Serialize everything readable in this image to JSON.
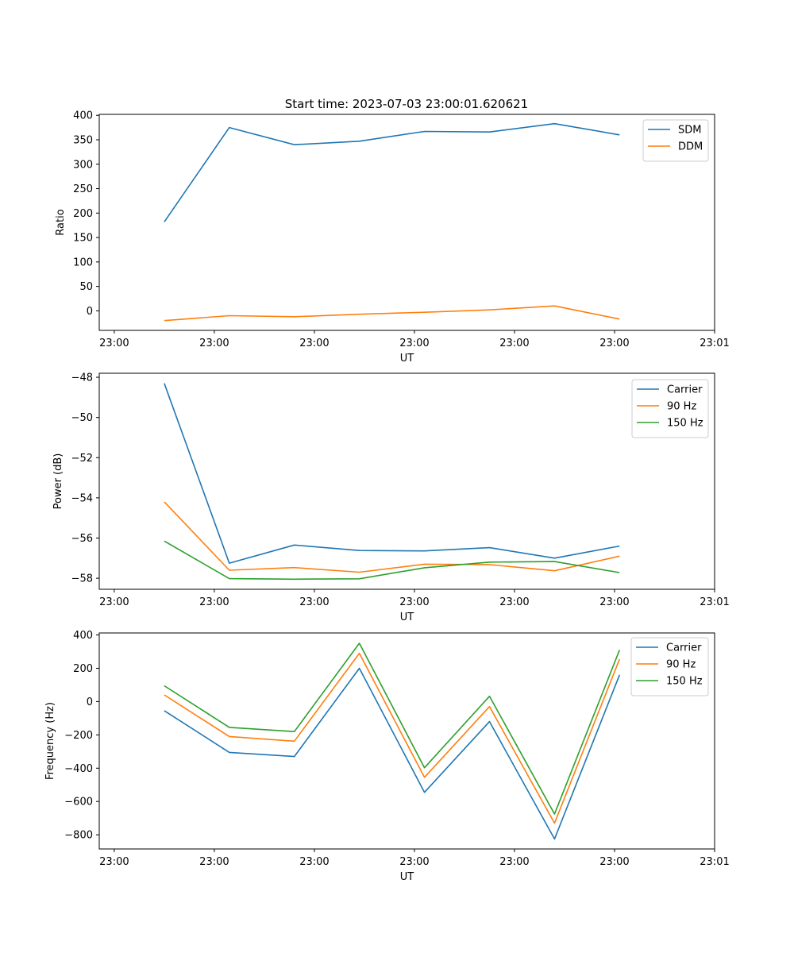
{
  "title": "Start time: 2023-07-03 23:00:01.620621",
  "colors": {
    "c1": "#1f77b4",
    "c2": "#ff7f0e",
    "c3": "#2ca02c"
  },
  "chart_data": [
    {
      "type": "line",
      "x": [
        0.5,
        1.15,
        1.8,
        2.45,
        3.1,
        3.75,
        4.4,
        5.05
      ],
      "xlim": [
        -0.15,
        6.0
      ],
      "xticks": [
        0,
        1,
        2,
        3,
        4,
        5,
        6
      ],
      "xtick_labels": [
        "23:00",
        "23:00",
        "23:00",
        "23:00",
        "23:00",
        "23:00",
        "23:01"
      ],
      "xlabel": "UT",
      "ylabel": "Ratio",
      "ylim": [
        -40,
        402
      ],
      "yticks": [
        400,
        350,
        300,
        250,
        200,
        150,
        100,
        50,
        0
      ],
      "ytick_labels": [
        "400",
        "350",
        "300",
        "250",
        "200",
        "150",
        "100",
        "50",
        "0"
      ],
      "legend_position": "top-right",
      "series": [
        {
          "name": "SDM",
          "color": "#1f77b4",
          "values": [
            182,
            375,
            340,
            347,
            367,
            366,
            383,
            360
          ]
        },
        {
          "name": "DDM",
          "color": "#ff7f0e",
          "values": [
            -20,
            -10,
            -12,
            -7,
            -3,
            2,
            10,
            -17
          ]
        }
      ]
    },
    {
      "type": "line",
      "x": [
        0.5,
        1.15,
        1.8,
        2.45,
        3.1,
        3.75,
        4.4,
        5.05
      ],
      "xlim": [
        -0.15,
        6.0
      ],
      "xticks": [
        0,
        1,
        2,
        3,
        4,
        5,
        6
      ],
      "xtick_labels": [
        "23:00",
        "23:00",
        "23:00",
        "23:00",
        "23:00",
        "23:00",
        "23:01"
      ],
      "xlabel": "UT",
      "ylabel": "Power (dB)",
      "ylim": [
        -58.55,
        -47.8
      ],
      "yticks": [
        -48,
        -50,
        -52,
        -54,
        -56,
        -58
      ],
      "ytick_labels": [
        "−48",
        "−50",
        "−52",
        "−54",
        "−56",
        "−58"
      ],
      "legend_position": "top-right",
      "series": [
        {
          "name": "Carrier",
          "color": "#1f77b4",
          "values": [
            -48.3,
            -57.25,
            -56.35,
            -56.62,
            -56.64,
            -56.48,
            -57.0,
            -56.4
          ]
        },
        {
          "name": "90 Hz",
          "color": "#ff7f0e",
          "values": [
            -54.2,
            -57.6,
            -57.47,
            -57.7,
            -57.3,
            -57.32,
            -57.63,
            -56.9
          ]
        },
        {
          "name": "150 Hz",
          "color": "#2ca02c",
          "values": [
            -56.15,
            -58.02,
            -58.05,
            -58.03,
            -57.48,
            -57.2,
            -57.17,
            -57.72
          ]
        }
      ]
    },
    {
      "type": "line",
      "x": [
        0.5,
        1.15,
        1.8,
        2.45,
        3.1,
        3.75,
        4.4,
        5.05
      ],
      "xlim": [
        -0.15,
        6.0
      ],
      "xticks": [
        0,
        1,
        2,
        3,
        4,
        5,
        6
      ],
      "xtick_labels": [
        "23:00",
        "23:00",
        "23:00",
        "23:00",
        "23:00",
        "23:00",
        "23:01"
      ],
      "xlabel": "UT",
      "ylabel": "Frequency (Hz)",
      "ylim": [
        -885,
        412
      ],
      "yticks": [
        400,
        200,
        0,
        -200,
        -400,
        -600,
        -800
      ],
      "ytick_labels": [
        "400",
        "200",
        "0",
        "−200",
        "−400",
        "−600",
        "−800"
      ],
      "legend_position": "top-right",
      "series": [
        {
          "name": "Carrier",
          "color": "#1f77b4",
          "values": [
            -55,
            -305,
            -330,
            200,
            -545,
            -120,
            -825,
            160
          ]
        },
        {
          "name": "90 Hz",
          "color": "#ff7f0e",
          "values": [
            40,
            -210,
            -238,
            290,
            -455,
            -30,
            -730,
            255
          ]
        },
        {
          "name": "150 Hz",
          "color": "#2ca02c",
          "values": [
            95,
            -155,
            -180,
            350,
            -397,
            32,
            -675,
            310
          ]
        }
      ]
    }
  ]
}
